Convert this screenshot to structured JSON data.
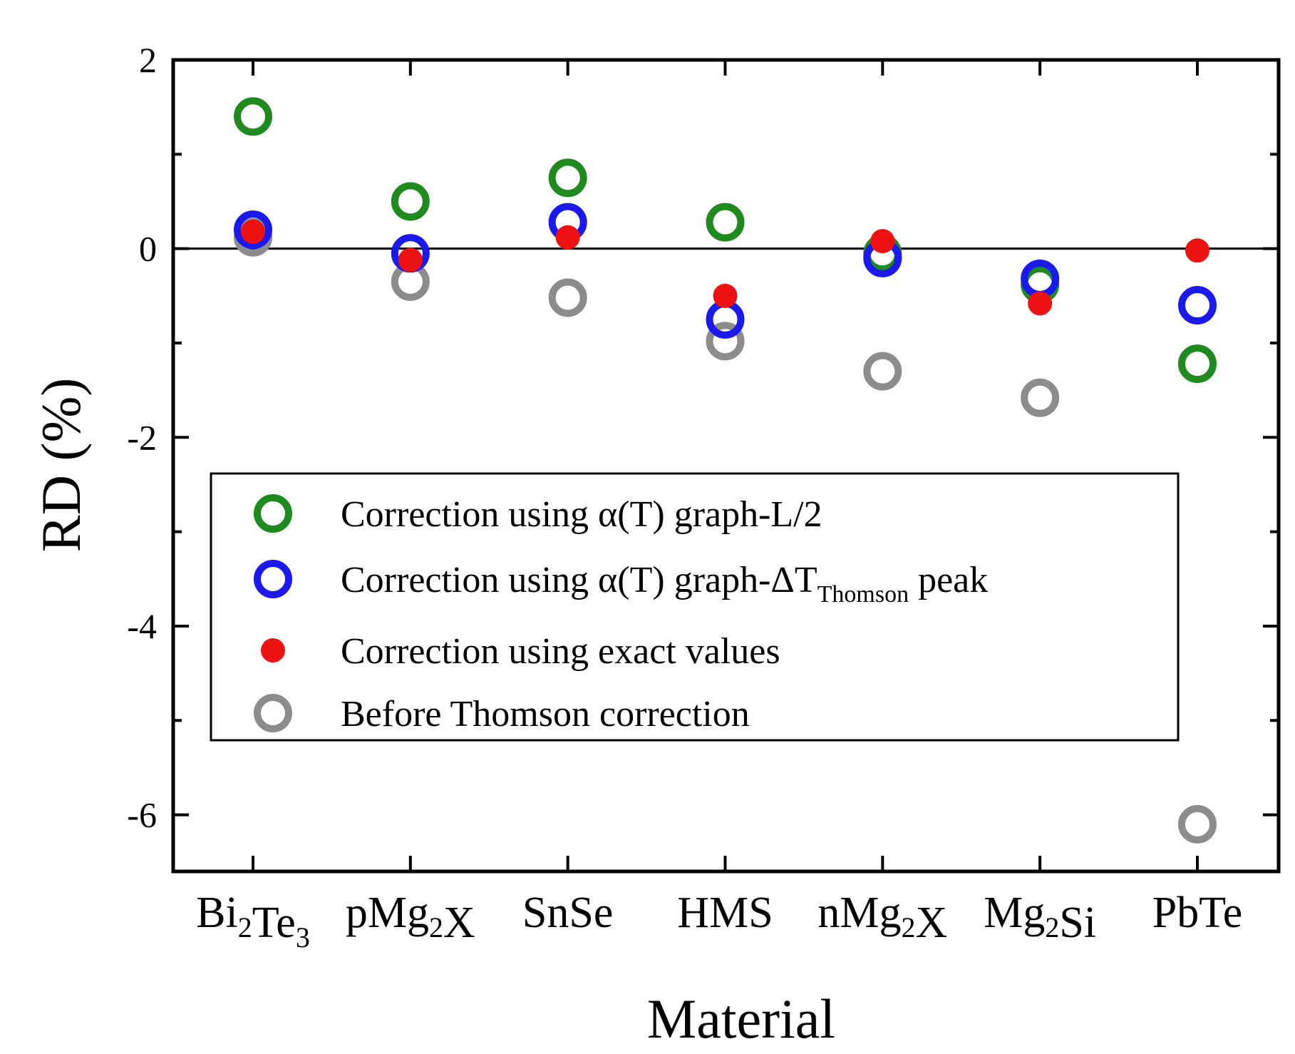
{
  "chart_data": {
    "type": "scatter",
    "title": "",
    "xlabel": "Material",
    "ylabel": "RD (%)",
    "ylim": [
      -6.6,
      2
    ],
    "yticks": [
      "2",
      "0",
      "-2",
      "-4",
      "-6"
    ],
    "categories": [
      {
        "base": "Bi",
        "sub1": "2",
        "mid": "Te",
        "sub2": "3"
      },
      {
        "base": "pMg",
        "sub1": "2",
        "mid": "X",
        "sub2": ""
      },
      {
        "base": "SnSe",
        "sub1": "",
        "mid": "",
        "sub2": ""
      },
      {
        "base": "HMS",
        "sub1": "",
        "mid": "",
        "sub2": ""
      },
      {
        "base": "nMg",
        "sub1": "2",
        "mid": "X",
        "sub2": ""
      },
      {
        "base": "Mg",
        "sub1": "2",
        "mid": "Si",
        "sub2": ""
      },
      {
        "base": "PbTe",
        "sub1": "",
        "mid": "",
        "sub2": ""
      }
    ],
    "reference_line": 0,
    "series": [
      {
        "name": "Correction using α(T) graph-L/2",
        "color": "#1f8b1f",
        "marker": "open-circle",
        "values": [
          1.4,
          0.5,
          0.75,
          0.28,
          -0.05,
          -0.38,
          -1.22
        ]
      },
      {
        "name": "Correction using α(T) graph-ΔT",
        "name_sub": "Thomson",
        "name_suffix": " peak",
        "color": "#1a1aee",
        "marker": "open-circle",
        "values": [
          0.2,
          -0.05,
          0.28,
          -0.75,
          -0.1,
          -0.32,
          -0.6
        ]
      },
      {
        "name": "Correction using exact values",
        "color": "#ee1111",
        "marker": "filled-circle",
        "values": [
          0.18,
          -0.12,
          0.12,
          -0.5,
          0.08,
          -0.58,
          -0.02
        ]
      },
      {
        "name": "Before Thomson correction",
        "color": "#8c8c8c",
        "marker": "open-circle",
        "values": [
          0.12,
          -0.35,
          -0.52,
          -0.98,
          -1.3,
          -1.58,
          -6.1
        ]
      }
    ],
    "legend_position": "center-left"
  }
}
